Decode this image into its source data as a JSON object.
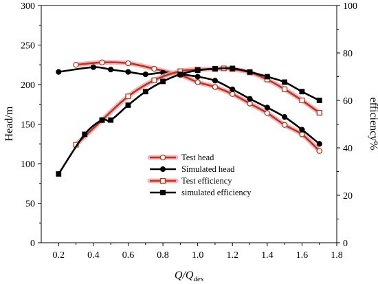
{
  "chart_data": {
    "type": "line",
    "xlabel": "Q/Q",
    "xlabel_sub": "des",
    "ylabel_left": "Head/m",
    "ylabel_right": "efficiency%",
    "xlim": [
      0.1,
      1.8
    ],
    "ylim_left": [
      0,
      300
    ],
    "ylim_right": [
      0,
      100
    ],
    "x_ticks": [
      "0.2",
      "0.4",
      "0.6",
      "0.8",
      "1.0",
      "1.2",
      "1.4",
      "1.6",
      "1.8"
    ],
    "y_left_ticks": [
      "0",
      "50",
      "100",
      "150",
      "200",
      "250",
      "300"
    ],
    "y_right_ticks": [
      "0",
      "20",
      "40",
      "60",
      "80",
      "100"
    ],
    "grid": false,
    "legend_position": "center",
    "series": [
      {
        "name": "Test head",
        "axis": "left",
        "color": "#b5391f",
        "halo": "#f2a9b4",
        "marker": "open-circle",
        "x": [
          0.3,
          0.45,
          0.6,
          0.75,
          0.9,
          1.0,
          1.1,
          1.2,
          1.3,
          1.4,
          1.5,
          1.6,
          1.7
        ],
        "y": [
          225,
          228,
          227,
          220,
          212,
          203,
          197,
          188,
          176,
          164,
          149,
          137,
          116
        ]
      },
      {
        "name": "Simulated head",
        "axis": "left",
        "color": "#000000",
        "marker": "filled-circle",
        "x": [
          0.2,
          0.4,
          0.5,
          0.6,
          0.7,
          0.8,
          0.9,
          1.0,
          1.1,
          1.2,
          1.3,
          1.4,
          1.5,
          1.6,
          1.7
        ],
        "y": [
          216,
          222,
          219,
          216,
          213,
          215,
          213,
          210,
          205,
          194,
          182,
          171,
          159,
          143,
          125
        ]
      },
      {
        "name": "Test efficiency",
        "axis": "right",
        "color": "#b5391f",
        "halo": "#f2a9b4",
        "marker": "open-square",
        "x": [
          0.3,
          0.45,
          0.6,
          0.75,
          0.9,
          1.0,
          1.1,
          1.15,
          1.2,
          1.3,
          1.4,
          1.5,
          1.6,
          1.7
        ],
        "y": [
          41.3,
          51.7,
          61.7,
          68.5,
          72.3,
          73.0,
          73.3,
          73.5,
          73.2,
          71.8,
          68.8,
          64.7,
          60.0,
          54.8
        ]
      },
      {
        "name": "simulated efficiency",
        "axis": "right",
        "color": "#000000",
        "marker": "filled-square",
        "x": [
          0.2,
          0.35,
          0.45,
          0.5,
          0.6,
          0.7,
          0.8,
          0.9,
          1.0,
          1.1,
          1.2,
          1.3,
          1.4,
          1.5,
          1.6,
          1.7
        ],
        "y": [
          29.0,
          45.7,
          51.7,
          51.7,
          58.0,
          63.7,
          68.0,
          71.0,
          72.7,
          73.3,
          73.5,
          72.0,
          70.0,
          67.7,
          63.7,
          60.0
        ]
      }
    ]
  }
}
